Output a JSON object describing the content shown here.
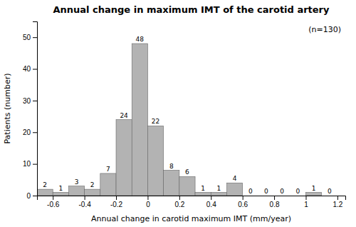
{
  "chart_data": {
    "type": "histogram",
    "title": "Annual change in maximum IMT of the carotid artery",
    "x_label": "Annual change in carotid maximum IMT (mm/year)",
    "y_label": "Patients (number)",
    "annotation": "(n=130)",
    "bins": [
      -0.7,
      -0.6,
      -0.5,
      -0.4,
      -0.3,
      -0.2,
      -0.1,
      0,
      0.1,
      0.2,
      0.3,
      0.4,
      0.5,
      0.6,
      0.7,
      0.8,
      0.9,
      1.0,
      1.1,
      1.2
    ],
    "values": [
      2,
      1,
      3,
      2,
      7,
      24,
      48,
      22,
      8,
      6,
      1,
      1,
      4,
      0,
      0,
      0,
      0,
      1,
      0
    ],
    "color": "#b3b3b3",
    "xlim": [
      -0.7,
      1.25
    ],
    "ylim": [
      0,
      55
    ],
    "xticks": [
      -0.6,
      -0.4,
      -0.2,
      0,
      0.2,
      0.4,
      0.6,
      0.8,
      1,
      1.2
    ],
    "yticks": [
      0,
      10,
      20,
      30,
      40,
      50
    ],
    "grid": false,
    "data_labels": true
  }
}
